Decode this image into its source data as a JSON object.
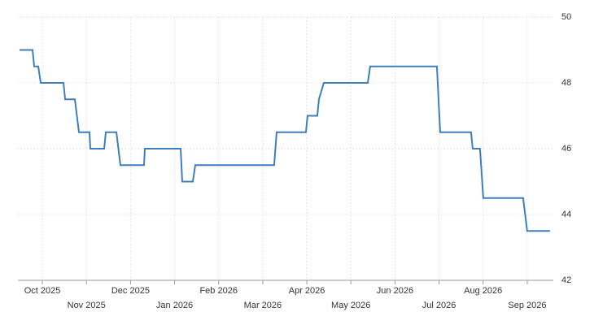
{
  "chart_data": {
    "type": "line",
    "x": [
      2025.7069,
      2025.7315,
      2025.7346,
      2025.7423,
      2025.7469,
      2025.79,
      2025.7931,
      2025.8115,
      2025.8192,
      2025.8392,
      2025.8407,
      2025.8669,
      2025.87,
      2025.89,
      2025.8976,
      2025.9422,
      2025.9438,
      2026.0115,
      2026.0145,
      2026.0345,
      2026.0391,
      2026.1883,
      2026.1929,
      2026.2483,
      2026.2514,
      2026.2698,
      2026.2729,
      2026.2821,
      2026.3652,
      2026.3698,
      2026.4959,
      2026.499,
      2026.5021,
      2026.5605,
      2026.5636,
      2026.5774,
      2026.5836,
      2026.6589,
      2026.6666,
      2026.7097
    ],
    "series": [
      {
        "color": "#3f7fb8",
        "values": [
          49,
          49,
          48.5,
          48.5,
          48,
          48,
          47.5,
          47.5,
          46.5,
          46.5,
          46,
          46,
          46.5,
          46.5,
          45.5,
          45.5,
          46,
          46,
          45,
          45,
          45.5,
          45.5,
          46.5,
          46.5,
          47,
          47,
          47.5,
          48,
          48,
          48.5,
          48.5,
          47.5,
          46.5,
          46.5,
          46,
          46,
          44.5,
          44.5,
          43.5,
          43.5
        ]
      }
    ],
    "xlim": [
      2025.7038,
      2026.716
    ],
    "xticks": [
      {
        "value": 2025.75,
        "label": "Oct 2025"
      },
      {
        "value": 2025.8333,
        "label": "Nov 2025"
      },
      {
        "value": 2025.9167,
        "label": "Dec 2025"
      },
      {
        "value": 2026.0,
        "label": "Jan 2026"
      },
      {
        "value": 2026.0833,
        "label": "Feb 2026"
      },
      {
        "value": 2026.1667,
        "label": "Mar 2026"
      },
      {
        "value": 2026.25,
        "label": "Apr 2026"
      },
      {
        "value": 2026.3333,
        "label": "May 2026"
      },
      {
        "value": 2026.4167,
        "label": "Jun 2026"
      },
      {
        "value": 2026.5,
        "label": "Jul 2026"
      },
      {
        "value": 2026.5833,
        "label": "Aug 2026"
      },
      {
        "value": 2026.6667,
        "label": "Sep 2026"
      }
    ],
    "ylim": [
      42,
      50
    ],
    "yticks": [
      42,
      44,
      46,
      48,
      50
    ],
    "grid": true
  }
}
